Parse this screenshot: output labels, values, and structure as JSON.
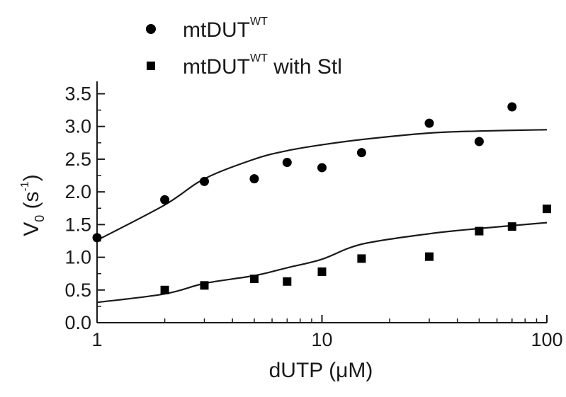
{
  "chart_data": {
    "type": "scatter",
    "xscale": "log",
    "xlim": [
      1,
      100
    ],
    "ylim": [
      0,
      3.6
    ],
    "xticks": [
      1,
      10,
      100
    ],
    "xtick_labels": [
      "1",
      "10",
      "100"
    ],
    "yticks": [
      0,
      0.5,
      1.0,
      1.5,
      2.0,
      2.5,
      3.0,
      3.5
    ],
    "ytick_labels": [
      "0.0",
      "0.5",
      "1.0",
      "1.5",
      "2.0",
      "2.5",
      "3.0",
      "3.5"
    ],
    "xlabel": "dUTP (μM)",
    "ylabel": {
      "main": "V",
      "sub": "0",
      "rest_open": " (s",
      "sup": "-1",
      "rest_close": ")"
    },
    "legend_position": "top-left, outside plot",
    "grid": false,
    "series": [
      {
        "name": {
          "main": "mtDUT",
          "sup": "WT",
          "suffix": ""
        },
        "marker": "circle",
        "x": [
          1,
          2,
          3,
          5,
          7,
          10,
          15,
          30,
          50,
          70
        ],
        "y": [
          1.3,
          1.88,
          2.16,
          2.2,
          2.45,
          2.37,
          2.6,
          3.05,
          2.77,
          3.3
        ],
        "fit": [
          1.26,
          1.8,
          2.2,
          2.5,
          2.63,
          2.72,
          2.8,
          2.9,
          2.93,
          2.95
        ]
      },
      {
        "name": {
          "main": "mtDUT",
          "sup": "WT",
          "suffix": " with Stl"
        },
        "marker": "square",
        "x": [
          2,
          3,
          5,
          7,
          10,
          15,
          30,
          50,
          70,
          100
        ],
        "y": [
          0.5,
          0.57,
          0.67,
          0.63,
          0.78,
          0.98,
          1.01,
          1.4,
          1.47,
          1.74
        ],
        "fit": [
          0.31,
          0.44,
          0.6,
          0.72,
          0.84,
          0.97,
          1.2,
          1.36,
          1.44,
          1.53
        ]
      }
    ],
    "fit_x": [
      1,
      2,
      3,
      5,
      7,
      10,
      15,
      30,
      50,
      100
    ],
    "colors": {
      "marks": "#000000",
      "axis": "#1a1a1a"
    }
  }
}
